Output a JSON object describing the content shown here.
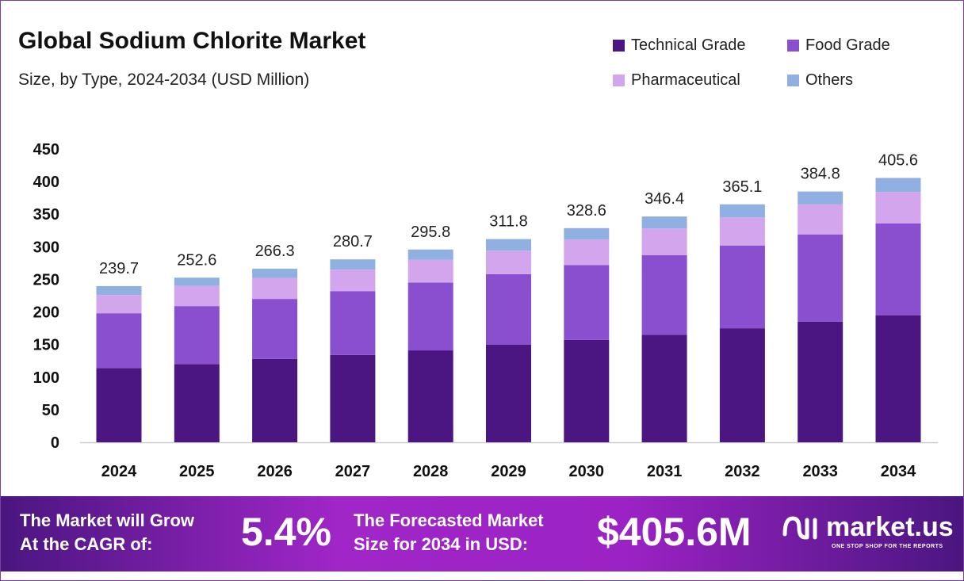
{
  "header": {
    "title": "Global Sodium Chlorite Market",
    "subtitle": "Size, by Type, 2024-2034 (USD Million)"
  },
  "chart_data": {
    "type": "bar",
    "stacked": true,
    "categories": [
      "2024",
      "2025",
      "2026",
      "2027",
      "2028",
      "2029",
      "2030",
      "2031",
      "2032",
      "2033",
      "2034"
    ],
    "series": [
      {
        "name": "Technical Grade",
        "color": "#4b1681",
        "values": [
          114,
          120,
          128,
          134,
          141,
          150,
          157,
          165,
          175,
          185,
          195
        ]
      },
      {
        "name": "Food Grade",
        "color": "#8a4fcf",
        "values": [
          84,
          89,
          92,
          98,
          104,
          108,
          115,
          122,
          127,
          134,
          141
        ]
      },
      {
        "name": "Pharmaceutical",
        "color": "#d3a5ec",
        "values": [
          28,
          31,
          32,
          33,
          35,
          36,
          39,
          41,
          43,
          46,
          48
        ]
      },
      {
        "name": "Others",
        "color": "#8fb0e0",
        "values": [
          13.7,
          12.6,
          14.3,
          15.7,
          15.8,
          17.8,
          17.6,
          18.4,
          20.1,
          19.8,
          21.6
        ]
      }
    ],
    "totals": [
      "239.7",
      "252.6",
      "266.3",
      "280.7",
      "295.8",
      "311.8",
      "328.6",
      "346.4",
      "365.1",
      "384.8",
      "405.6"
    ],
    "ylim": [
      0,
      450
    ],
    "yticks": [
      "0",
      "50",
      "100",
      "150",
      "200",
      "250",
      "300",
      "350",
      "400",
      "450"
    ],
    "grid": false,
    "legend": "top-right"
  },
  "footer": {
    "cagr_line1": "The Market will Grow",
    "cagr_line2": "At the CAGR of:",
    "cagr_value": "5.4%",
    "forecast_line1": "The Forecasted Market",
    "forecast_line2": "Size for 2034 in USD:",
    "forecast_value": "$405.6M",
    "logo": "market.us",
    "logo_tagline": "ONE STOP SHOP FOR THE REPORTS"
  }
}
